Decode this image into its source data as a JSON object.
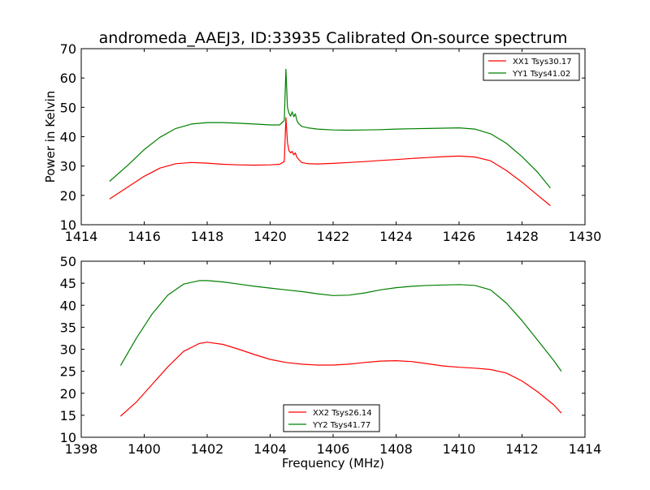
{
  "figure": {
    "title": "andromeda_AAEJ3, ID:33935 Calibrated On-source spectrum"
  },
  "chart_data": [
    {
      "type": "line",
      "title": "andromeda_AAEJ3, ID:33935 Calibrated On-source spectrum",
      "xlabel": "",
      "ylabel": "Power in Kelvin",
      "xlim": [
        1414,
        1430
      ],
      "ylim": [
        10,
        70
      ],
      "xticks": [
        1414,
        1416,
        1418,
        1420,
        1422,
        1424,
        1426,
        1428,
        1430
      ],
      "yticks": [
        10,
        20,
        30,
        40,
        50,
        60,
        70
      ],
      "grid": false,
      "legend_position": "top-right",
      "series": [
        {
          "name": "XX1 Tsys30.17",
          "color": "#ff0000",
          "x": [
            1414.9,
            1415.5,
            1416.0,
            1416.5,
            1417.0,
            1417.5,
            1418.0,
            1418.5,
            1419.0,
            1419.5,
            1420.0,
            1420.3,
            1420.45,
            1420.5,
            1420.55,
            1420.6,
            1420.65,
            1420.7,
            1420.75,
            1420.8,
            1420.85,
            1420.9,
            1421.0,
            1421.2,
            1421.5,
            1422.0,
            1422.5,
            1423.0,
            1423.5,
            1424.0,
            1424.5,
            1425.0,
            1425.5,
            1426.0,
            1426.5,
            1427.0,
            1427.5,
            1428.0,
            1428.5,
            1428.9
          ],
          "y": [
            18.8,
            23.0,
            26.5,
            29.3,
            30.8,
            31.2,
            31.0,
            30.6,
            30.4,
            30.3,
            30.4,
            30.6,
            31.5,
            46.5,
            38.0,
            35.2,
            34.5,
            35.0,
            33.8,
            34.5,
            33.0,
            32.3,
            31.2,
            30.8,
            30.7,
            30.9,
            31.2,
            31.5,
            31.9,
            32.2,
            32.6,
            32.9,
            33.2,
            33.4,
            33.1,
            31.8,
            28.5,
            24.5,
            20.0,
            16.5
          ]
        },
        {
          "name": "YY1 Tsys41.02",
          "color": "#008000",
          "x": [
            1414.9,
            1415.5,
            1416.0,
            1416.5,
            1417.0,
            1417.5,
            1418.0,
            1418.5,
            1419.0,
            1419.5,
            1420.0,
            1420.3,
            1420.45,
            1420.5,
            1420.55,
            1420.6,
            1420.65,
            1420.7,
            1420.75,
            1420.8,
            1420.85,
            1420.9,
            1421.0,
            1421.2,
            1421.5,
            1422.0,
            1422.5,
            1423.0,
            1423.5,
            1424.0,
            1424.5,
            1425.0,
            1425.5,
            1426.0,
            1426.5,
            1427.0,
            1427.5,
            1428.0,
            1428.5,
            1428.9
          ],
          "y": [
            24.8,
            30.5,
            35.6,
            39.8,
            42.8,
            44.3,
            44.8,
            44.8,
            44.6,
            44.3,
            44.0,
            44.0,
            45.5,
            63.0,
            50.0,
            48.0,
            47.0,
            48.5,
            46.8,
            47.8,
            45.5,
            44.5,
            43.5,
            43.0,
            42.6,
            42.3,
            42.2,
            42.3,
            42.4,
            42.6,
            42.7,
            42.8,
            42.9,
            43.0,
            42.6,
            41.0,
            37.8,
            33.2,
            27.8,
            22.5
          ]
        }
      ]
    },
    {
      "type": "line",
      "title": "",
      "xlabel": "Frequency (MHz)",
      "ylabel": "",
      "xlim": [
        1398,
        1414
      ],
      "ylim": [
        10,
        50
      ],
      "xticks": [
        1398,
        1400,
        1402,
        1404,
        1406,
        1408,
        1410,
        1412,
        1414
      ],
      "yticks": [
        10,
        15,
        20,
        25,
        30,
        35,
        40,
        45,
        50
      ],
      "grid": false,
      "legend_position": "bottom-center",
      "series": [
        {
          "name": "XX2 Tsys26.14",
          "color": "#ff0000",
          "x": [
            1399.25,
            1399.75,
            1400.25,
            1400.75,
            1401.25,
            1401.75,
            1402.0,
            1402.5,
            1403.0,
            1403.5,
            1404.0,
            1404.5,
            1405.0,
            1405.5,
            1406.0,
            1406.5,
            1407.0,
            1407.5,
            1408.0,
            1408.5,
            1409.0,
            1409.5,
            1410.0,
            1410.5,
            1411.0,
            1411.5,
            1412.0,
            1412.5,
            1413.0,
            1413.25
          ],
          "y": [
            14.8,
            18.0,
            22.0,
            26.0,
            29.5,
            31.3,
            31.6,
            31.1,
            30.0,
            28.8,
            27.7,
            27.0,
            26.6,
            26.4,
            26.4,
            26.6,
            27.0,
            27.3,
            27.4,
            27.2,
            26.7,
            26.2,
            25.9,
            25.7,
            25.4,
            24.6,
            22.8,
            20.3,
            17.4,
            15.5
          ]
        },
        {
          "name": "YY2 Tsys41.77",
          "color": "#008000",
          "x": [
            1399.25,
            1399.75,
            1400.25,
            1400.75,
            1401.25,
            1401.75,
            1402.0,
            1402.5,
            1403.0,
            1403.5,
            1404.0,
            1404.5,
            1405.0,
            1405.5,
            1406.0,
            1406.5,
            1407.0,
            1407.5,
            1408.0,
            1408.5,
            1409.0,
            1409.5,
            1410.0,
            1410.5,
            1411.0,
            1411.5,
            1412.0,
            1412.5,
            1413.0,
            1413.25
          ],
          "y": [
            26.3,
            32.5,
            38.0,
            42.3,
            44.8,
            45.6,
            45.6,
            45.3,
            44.8,
            44.3,
            43.9,
            43.5,
            43.1,
            42.6,
            42.2,
            42.3,
            42.8,
            43.5,
            44.0,
            44.3,
            44.5,
            44.6,
            44.7,
            44.5,
            43.5,
            40.5,
            36.5,
            32.0,
            27.5,
            25.0
          ]
        }
      ]
    }
  ]
}
